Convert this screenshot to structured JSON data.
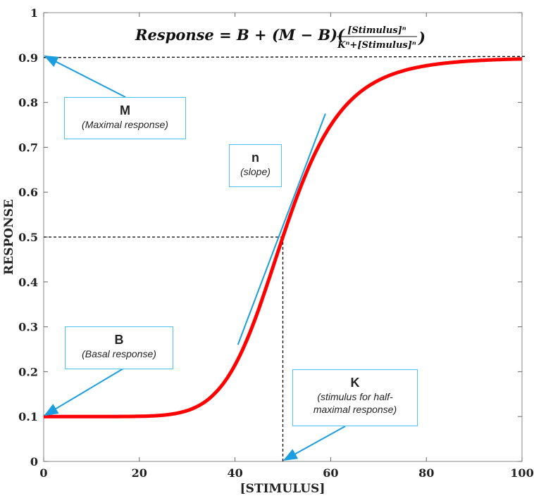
{
  "chart_data": {
    "type": "line",
    "title": "",
    "formula": {
      "lhs": "Response = B + (M − B)(",
      "numerator": "[Stimulus]ⁿ",
      "denominator": "Kⁿ+[Stimulus]ⁿ",
      "close": ")"
    },
    "xlabel": "[STIMULUS]",
    "ylabel": "RESPONSE",
    "xlim": [
      0,
      100
    ],
    "ylim": [
      0,
      1
    ],
    "xticks": [
      0,
      20,
      40,
      60,
      80,
      100
    ],
    "yticks": [
      0,
      0.1,
      0.2,
      0.3,
      0.4,
      0.5,
      0.6,
      0.7,
      0.8,
      0.9,
      1
    ],
    "ytick_labels": [
      "0",
      "0.1",
      "0.2",
      "0.3",
      "0.4",
      "0.5",
      "0.6",
      "0.7",
      "0.8",
      "0.9",
      "1"
    ],
    "grid": false,
    "series": [
      {
        "model": "hill",
        "B": 0.1,
        "M": 0.9,
        "K": 50,
        "n": 8,
        "color": "#ff0000"
      }
    ],
    "tangent": {
      "x": [
        40.6,
        58.9
      ],
      "y": [
        0.26,
        0.775
      ],
      "color": "#1a9ee0"
    },
    "reference_lines": {
      "max_y": 0.9,
      "half_y": 0.5,
      "half_x": 50
    },
    "annotations": [
      {
        "title": "M",
        "subtitle": "(Maximal response)",
        "target": [
          0,
          0.9
        ]
      },
      {
        "title": "n",
        "subtitle": "(slope)"
      },
      {
        "title": "B",
        "subtitle": "(Basal response)",
        "target": [
          0,
          0.1
        ]
      },
      {
        "title": "K",
        "subtitle": "(stimulus for half-maximal response)",
        "target": [
          50,
          0
        ]
      }
    ],
    "annotation_color": "#1a9ee0"
  }
}
